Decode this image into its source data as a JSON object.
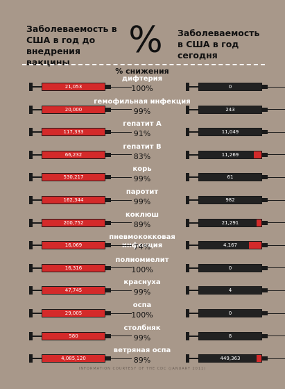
{
  "header": {
    "left_title": "Заболеваемость в США в год до внедрения вакцины",
    "percent_sign": "%",
    "right_title": "Заболеваемость в США в год сегодня"
  },
  "percent_label": "% снижения",
  "colors": {
    "background": "#a8988a",
    "red": "#d42a2a",
    "black": "#1a1a1a"
  },
  "diseases": [
    {
      "name": "дифтерия",
      "pct": "100%",
      "before": "21,053",
      "now": "0",
      "now_fill": 0
    },
    {
      "name": "гемофильная инфекция",
      "pct": "99%",
      "before": "20,000",
      "now": "243",
      "now_fill": 0
    },
    {
      "name": "гепатит А",
      "pct": "91%",
      "before": "117,333",
      "now": "11,049",
      "now_fill": 0
    },
    {
      "name": "гепатит В",
      "pct": "83%",
      "before": "66,232",
      "now": "11,269",
      "now_fill": 0.12
    },
    {
      "name": "корь",
      "pct": "99%",
      "before": "530,217",
      "now": "61",
      "now_fill": 0
    },
    {
      "name": "паротит",
      "pct": "99%",
      "before": "162,344",
      "now": "982",
      "now_fill": 0
    },
    {
      "name": "коклюш",
      "pct": "89%",
      "before": "200,752",
      "now": "21,291",
      "now_fill": 0.08
    },
    {
      "name": "пневмококковая инфекция",
      "pct": "74%",
      "before": "16,069",
      "now": "4,167",
      "now_fill": 0.2
    },
    {
      "name": "полиомиелит",
      "pct": "100%",
      "before": "16,316",
      "now": "0",
      "now_fill": 0
    },
    {
      "name": "краснуха",
      "pct": "99%",
      "before": "47,745",
      "now": "4",
      "now_fill": 0
    },
    {
      "name": "оспа",
      "pct": "100%",
      "before": "29,005",
      "now": "0",
      "now_fill": 0
    },
    {
      "name": "столбняк",
      "pct": "99%",
      "before": "580",
      "now": "8",
      "now_fill": 0
    },
    {
      "name": "ветряная оспа",
      "pct": "89%",
      "before": "4,085,120",
      "now": "449,363",
      "now_fill": 0.08
    }
  ],
  "footer": "INFORMATION COURTESY OF THE CDC (JANUARY 2011)"
}
